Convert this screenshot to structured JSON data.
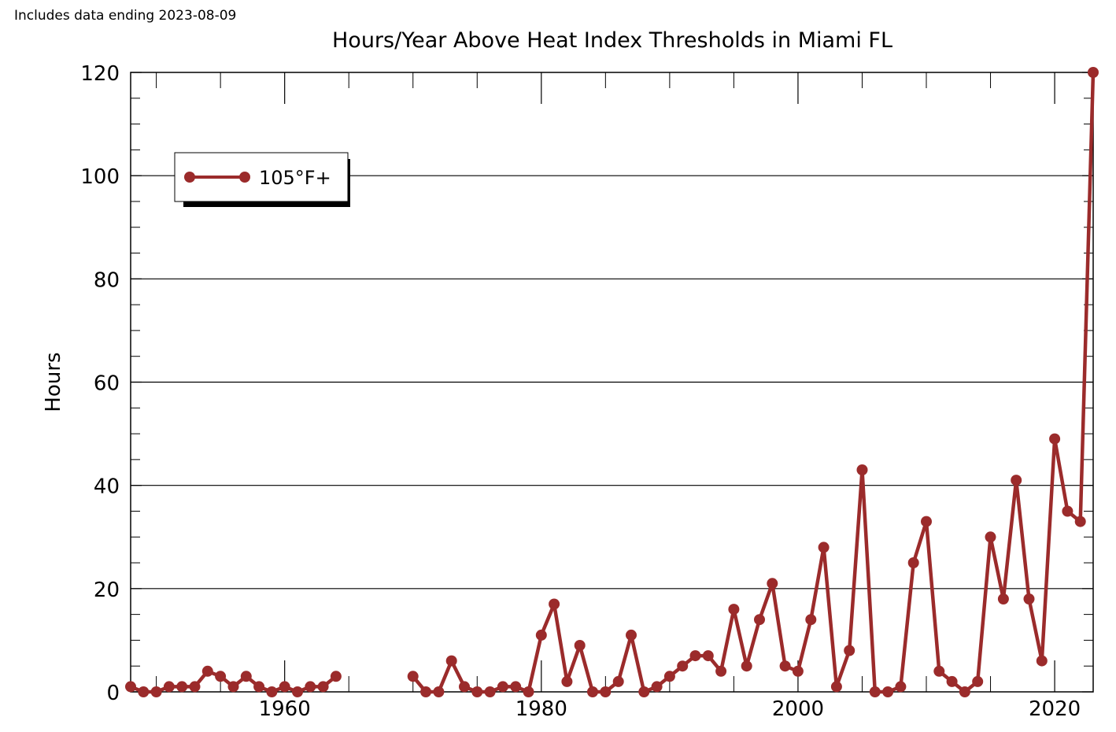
{
  "note": "Includes data ending 2023-08-09",
  "chart_data": {
    "type": "line",
    "title": "Hours/Year Above Heat Index Thresholds in Miami FL",
    "xlabel": "",
    "ylabel": "Hours",
    "xlim": [
      1948,
      2023
    ],
    "ylim": [
      0,
      120
    ],
    "x_ticks": [
      1960,
      1980,
      2000,
      2020
    ],
    "y_ticks": [
      0,
      20,
      40,
      60,
      80,
      100,
      120
    ],
    "grid": "horizontal",
    "legend_position": "top-left",
    "series": [
      {
        "name": "105°F+",
        "color": "#9b2b2b",
        "segments": [
          {
            "x": [
              1948,
              1949,
              1950,
              1951,
              1952,
              1953,
              1954,
              1955,
              1956,
              1957,
              1958,
              1959,
              1960,
              1961,
              1962,
              1963,
              1964
            ],
            "y": [
              1,
              0,
              0,
              1,
              1,
              1,
              4,
              3,
              1,
              3,
              1,
              0,
              1,
              0,
              1,
              1,
              3
            ]
          },
          {
            "x": [
              1970,
              1971,
              1972,
              1973,
              1974,
              1975,
              1976,
              1977,
              1978,
              1979,
              1980,
              1981,
              1982,
              1983,
              1984,
              1985,
              1986,
              1987,
              1988,
              1989,
              1990,
              1991,
              1992,
              1993,
              1994,
              1995,
              1996,
              1997,
              1998,
              1999,
              2000,
              2001,
              2002,
              2003,
              2004,
              2005,
              2006,
              2007,
              2008,
              2009,
              2010,
              2011,
              2012,
              2013,
              2014,
              2015,
              2016,
              2017,
              2018,
              2019,
              2020,
              2021,
              2022,
              2023
            ],
            "y": [
              3,
              0,
              0,
              6,
              1,
              0,
              0,
              1,
              1,
              0,
              11,
              17,
              2,
              9,
              0,
              0,
              2,
              11,
              0,
              1,
              3,
              5,
              7,
              7,
              4,
              16,
              5,
              14,
              21,
              5,
              4,
              14,
              28,
              1,
              8,
              43,
              0,
              0,
              1,
              25,
              33,
              4,
              2,
              0,
              2,
              30,
              18,
              41,
              18,
              6,
              49,
              35,
              33,
              120
            ]
          }
        ]
      }
    ]
  }
}
